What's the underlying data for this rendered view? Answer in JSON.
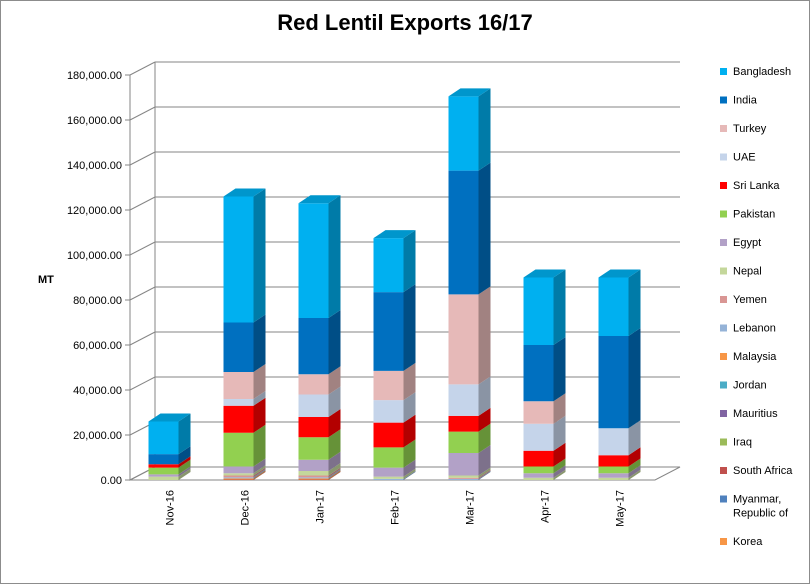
{
  "chart_data": {
    "type": "bar",
    "stacked": true,
    "three_d": true,
    "title": "Red Lentil Exports 16/17",
    "ylabel": "MT",
    "xlabel": "",
    "ylim": [
      0,
      180000
    ],
    "ytick_step": 20000,
    "ytick_labels": [
      "0.00",
      "20,000.00",
      "40,000.00",
      "60,000.00",
      "80,000.00",
      "100,000.00",
      "120,000.00",
      "140,000.00",
      "160,000.00",
      "180,000.00"
    ],
    "grid": true,
    "legend_position": "right",
    "categories": [
      "Nov-16",
      "Dec-16",
      "Jan-17",
      "Feb-17",
      "Mar-17",
      "Apr-17",
      "May-17"
    ],
    "series": [
      {
        "name": "Korea",
        "color": "#f79646",
        "values": [
          0,
          0,
          0,
          0,
          0,
          0,
          0
        ]
      },
      {
        "name": "Myanmar, Republic of",
        "color": "#4f81bd",
        "values": [
          0,
          0,
          0,
          0,
          0,
          0,
          0
        ]
      },
      {
        "name": "South Africa",
        "color": "#c0504d",
        "values": [
          0,
          200,
          200,
          0,
          0,
          0,
          0
        ]
      },
      {
        "name": "Iraq",
        "color": "#9bbb59",
        "values": [
          0,
          0,
          0,
          0,
          0,
          0,
          0
        ]
      },
      {
        "name": "Mauritius",
        "color": "#8064a2",
        "values": [
          0,
          0,
          0,
          0,
          0,
          0,
          0
        ]
      },
      {
        "name": "Jordan",
        "color": "#4bacc6",
        "values": [
          0,
          0,
          0,
          0,
          0,
          0,
          0
        ]
      },
      {
        "name": "Malaysia",
        "color": "#f79646",
        "values": [
          0,
          500,
          500,
          0,
          0,
          0,
          0
        ]
      },
      {
        "name": "Lebanon",
        "color": "#95b3d7",
        "values": [
          0,
          500,
          500,
          500,
          500,
          0,
          0
        ]
      },
      {
        "name": "Yemen",
        "color": "#d99694",
        "values": [
          0,
          800,
          800,
          0,
          500,
          0,
          0
        ]
      },
      {
        "name": "Nepal",
        "color": "#c4d79b",
        "values": [
          1500,
          1000,
          2000,
          1000,
          1000,
          1000,
          1000
        ]
      },
      {
        "name": "Egypt",
        "color": "#b2a1c7",
        "values": [
          1000,
          3000,
          5000,
          4000,
          10000,
          2000,
          2000
        ]
      },
      {
        "name": "Pakistan",
        "color": "#92d050",
        "values": [
          3000,
          15000,
          10000,
          9000,
          9500,
          3000,
          3000
        ]
      },
      {
        "name": "Sri Lanka",
        "color": "#ff0000",
        "values": [
          1500,
          12000,
          9000,
          11000,
          7000,
          7000,
          5000
        ]
      },
      {
        "name": "UAE",
        "color": "#c5d4ea",
        "values": [
          0,
          3000,
          10000,
          10000,
          14000,
          12000,
          12000
        ]
      },
      {
        "name": "Turkey",
        "color": "#e6b9b8",
        "values": [
          0,
          12000,
          9000,
          13000,
          40000,
          10000,
          0
        ]
      },
      {
        "name": "India",
        "color": "#0070c0",
        "values": [
          4500,
          22000,
          25000,
          35000,
          55000,
          25000,
          41000
        ]
      },
      {
        "name": "Bangladesh",
        "color": "#00b0f0",
        "values": [
          14500,
          56000,
          51000,
          24000,
          33000,
          30000,
          26000
        ]
      }
    ]
  }
}
